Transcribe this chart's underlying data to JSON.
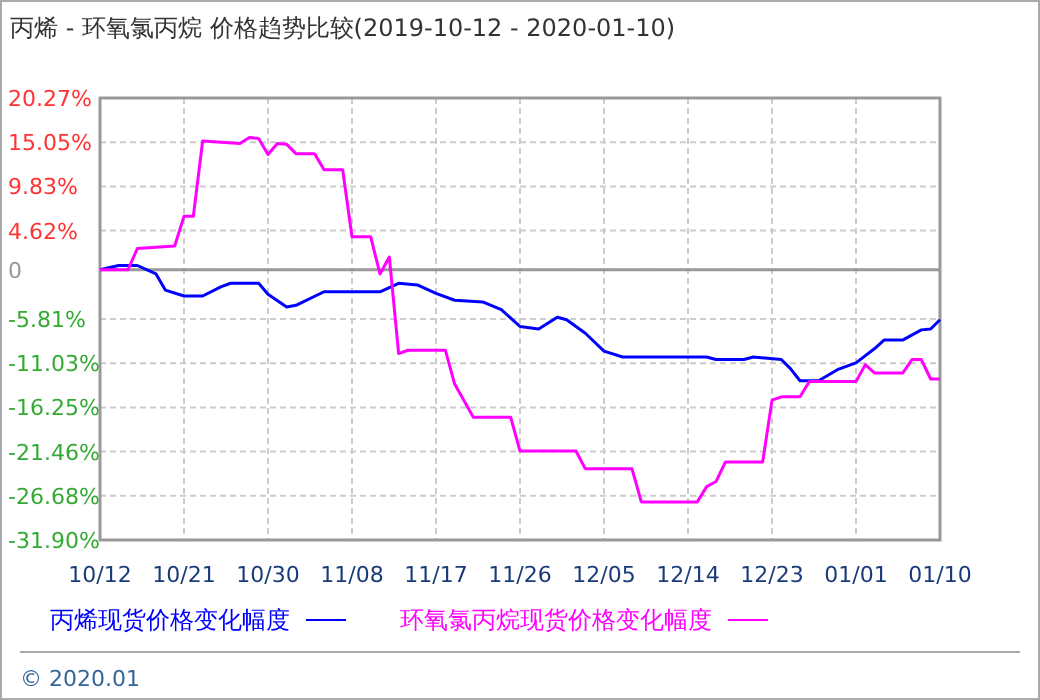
{
  "chart_data": {
    "type": "line",
    "title": "丙烯 - 环氧氯丙烷 价格趋势比较(2019-10-12 - 2020-01-10)",
    "xlim": [
      "2019-10-12",
      "2020-01-10"
    ],
    "xticks": [
      {
        "value": "2019-10-12",
        "label": "10/12"
      },
      {
        "value": "2019-10-21",
        "label": "10/21"
      },
      {
        "value": "2019-10-30",
        "label": "10/30"
      },
      {
        "value": "2019-11-08",
        "label": "11/08"
      },
      {
        "value": "2019-11-17",
        "label": "11/17"
      },
      {
        "value": "2019-11-26",
        "label": "11/26"
      },
      {
        "value": "2019-12-05",
        "label": "12/05"
      },
      {
        "value": "2019-12-14",
        "label": "12/14"
      },
      {
        "value": "2019-12-23",
        "label": "12/23"
      },
      {
        "value": "2020-01-01",
        "label": "01/01"
      },
      {
        "value": "2020-01-10",
        "label": "01/10"
      }
    ],
    "ylim": [
      -31.9,
      20.27
    ],
    "yticks": [
      {
        "value": 20.27,
        "label": "20.27%"
      },
      {
        "value": 15.05,
        "label": "15.05%"
      },
      {
        "value": 9.83,
        "label": "9.83%"
      },
      {
        "value": 4.62,
        "label": "4.62%"
      },
      0,
      {
        "value": -5.81,
        "label": "-5.81%"
      },
      {
        "value": -11.03,
        "label": "-11.03%"
      },
      {
        "value": -16.25,
        "label": "-16.25%"
      },
      {
        "value": -21.46,
        "label": "-21.46%"
      },
      {
        "value": -26.68,
        "label": "-26.68%"
      },
      {
        "value": -31.9,
        "label": "-31.90%"
      }
    ],
    "grid": true,
    "legend": "bottom",
    "line_style": "solid",
    "ref_lines": [
      {
        "axis": "y",
        "value": 0,
        "color": "#999999"
      }
    ],
    "annotations": [
      "© 2020.01"
    ],
    "series": [
      {
        "name": "丙烯现货价格变化幅度",
        "color": "#0000ff",
        "x": [
          "2019-10-12",
          "2019-10-14",
          "2019-10-16",
          "2019-10-18",
          "2019-10-19",
          "2019-10-21",
          "2019-10-23",
          "2019-10-25",
          "2019-10-26",
          "2019-10-29",
          "2019-10-30",
          "2019-11-01",
          "2019-11-02",
          "2019-11-05",
          "2019-11-11",
          "2019-11-13",
          "2019-11-15",
          "2019-11-17",
          "2019-11-19",
          "2019-11-22",
          "2019-11-24",
          "2019-11-26",
          "2019-11-28",
          "2019-11-30",
          "2019-12-01",
          "2019-12-03",
          "2019-12-05",
          "2019-12-07",
          "2019-12-16",
          "2019-12-17",
          "2019-12-20",
          "2019-12-21",
          "2019-12-24",
          "2019-12-25",
          "2019-12-26",
          "2019-12-28",
          "2019-12-30",
          "2020-01-01",
          "2020-01-03",
          "2020-01-04",
          "2020-01-06",
          "2020-01-08",
          "2020-01-09",
          "2020-01-10"
        ],
        "values": [
          0,
          0.5,
          0.5,
          -0.5,
          -2.4,
          -3.1,
          -3.1,
          -2.0,
          -1.6,
          -1.6,
          -2.9,
          -4.4,
          -4.2,
          -2.6,
          -2.6,
          -1.6,
          -1.8,
          -2.8,
          -3.6,
          -3.8,
          -4.7,
          -6.7,
          -7.0,
          -5.6,
          -5.9,
          -7.5,
          -9.6,
          -10.3,
          -10.3,
          -10.6,
          -10.6,
          -10.3,
          -10.6,
          -11.7,
          -13.1,
          -13.1,
          -11.8,
          -11.0,
          -9.3,
          -8.3,
          -8.3,
          -7.1,
          -7.0,
          -5.9
        ]
      },
      {
        "name": "环氧氯丙烷现货价格变化幅度",
        "color": "#ff00ff",
        "x": [
          "2019-10-12",
          "2019-10-15",
          "2019-10-16",
          "2019-10-20",
          "2019-10-21",
          "2019-10-22",
          "2019-10-23",
          "2019-10-27",
          "2019-10-28",
          "2019-10-29",
          "2019-10-30",
          "2019-10-31",
          "2019-11-01",
          "2019-11-02",
          "2019-11-04",
          "2019-11-05",
          "2019-11-07",
          "2019-11-08",
          "2019-11-10",
          "2019-11-11",
          "2019-11-12",
          "2019-11-13",
          "2019-11-14",
          "2019-11-18",
          "2019-11-19",
          "2019-11-21",
          "2019-11-25",
          "2019-11-26",
          "2019-12-02",
          "2019-12-03",
          "2019-12-08",
          "2019-12-09",
          "2019-12-15",
          "2019-12-16",
          "2019-12-17",
          "2019-12-18",
          "2019-12-22",
          "2019-12-23",
          "2019-12-24",
          "2019-12-26",
          "2019-12-27",
          "2020-01-01",
          "2020-01-02",
          "2020-01-03",
          "2020-01-06",
          "2020-01-07",
          "2020-01-08",
          "2020-01-09",
          "2020-01-10"
        ],
        "values": [
          0,
          0,
          2.5,
          2.8,
          6.3,
          6.3,
          15.2,
          14.9,
          15.6,
          15.5,
          13.6,
          14.9,
          14.8,
          13.7,
          13.7,
          11.8,
          11.8,
          3.9,
          3.9,
          -0.5,
          1.5,
          -9.9,
          -9.5,
          -9.5,
          -13.5,
          -17.4,
          -17.4,
          -21.4,
          -21.4,
          -23.5,
          -23.5,
          -27.4,
          -27.4,
          -25.6,
          -25.0,
          -22.7,
          -22.7,
          -15.4,
          -15.0,
          -15.0,
          -13.2,
          -13.2,
          -11.2,
          -12.2,
          -12.2,
          -10.6,
          -10.6,
          -12.9,
          -12.9
        ]
      }
    ]
  }
}
